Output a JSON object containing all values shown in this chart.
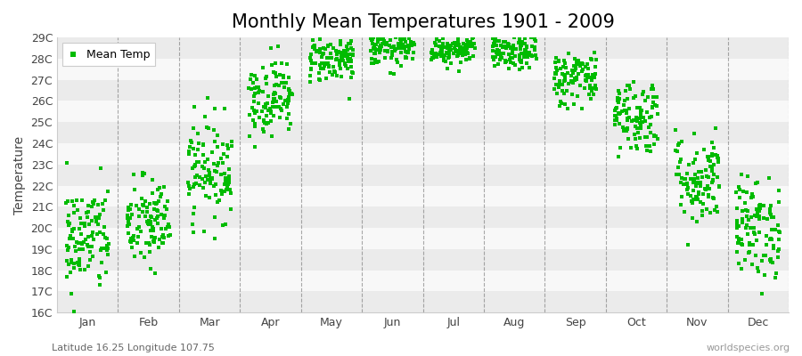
{
  "title": "Monthly Mean Temperatures 1901 - 2009",
  "ylabel": "Temperature",
  "subtitle": "Latitude 16.25 Longitude 107.75",
  "watermark": "worldspecies.org",
  "months": [
    "Jan",
    "Feb",
    "Mar",
    "Apr",
    "May",
    "Jun",
    "Jul",
    "Aug",
    "Sep",
    "Oct",
    "Nov",
    "Dec"
  ],
  "mean_temps": [
    19.5,
    20.2,
    22.8,
    26.2,
    28.0,
    28.5,
    28.5,
    28.3,
    27.1,
    25.3,
    22.3,
    20.0
  ],
  "temp_stds": [
    1.3,
    1.1,
    1.2,
    0.9,
    0.55,
    0.42,
    0.38,
    0.42,
    0.65,
    0.9,
    1.1,
    1.2
  ],
  "ylim_min": 16,
  "ylim_max": 29,
  "dot_color": "#00bb00",
  "dot_size": 6,
  "n_years": 109,
  "background_light": "#ebebeb",
  "background_dark": "#f8f8f8",
  "grid_color": "#666666",
  "title_fontsize": 15,
  "axis_label_fontsize": 10,
  "tick_fontsize": 9,
  "legend_fontsize": 9
}
